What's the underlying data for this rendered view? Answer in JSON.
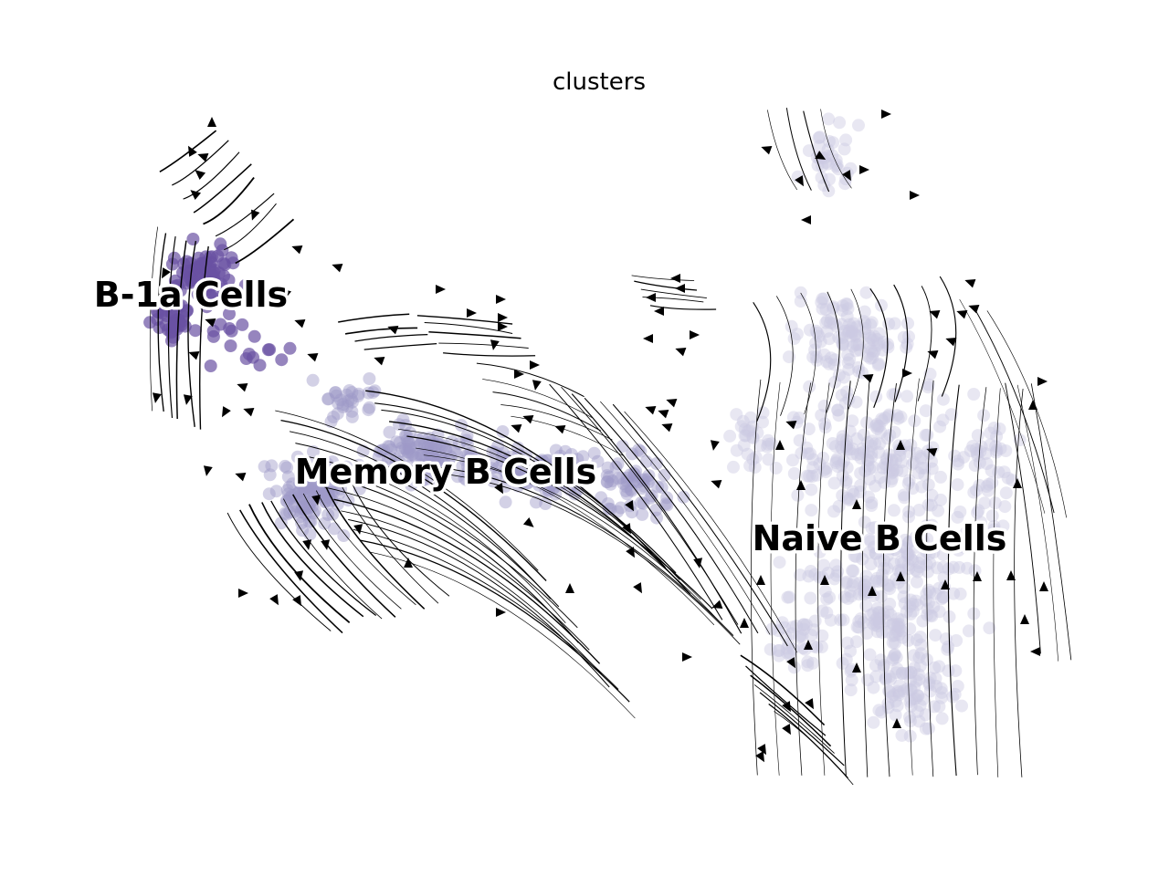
{
  "chart_data": {
    "type": "scatter",
    "title": "clusters",
    "xlabel": "",
    "ylabel": "",
    "grid": false,
    "axes_visible": false,
    "overlay": "velocity streamlines with arrowheads",
    "clusters": [
      {
        "name": "B-1a Cells",
        "color": "#6a51a3"
      },
      {
        "name": "Memory B Cells",
        "color": "#9e9ac8"
      },
      {
        "name": "Naive B Cells",
        "color": "#cbc9e2"
      }
    ]
  }
}
